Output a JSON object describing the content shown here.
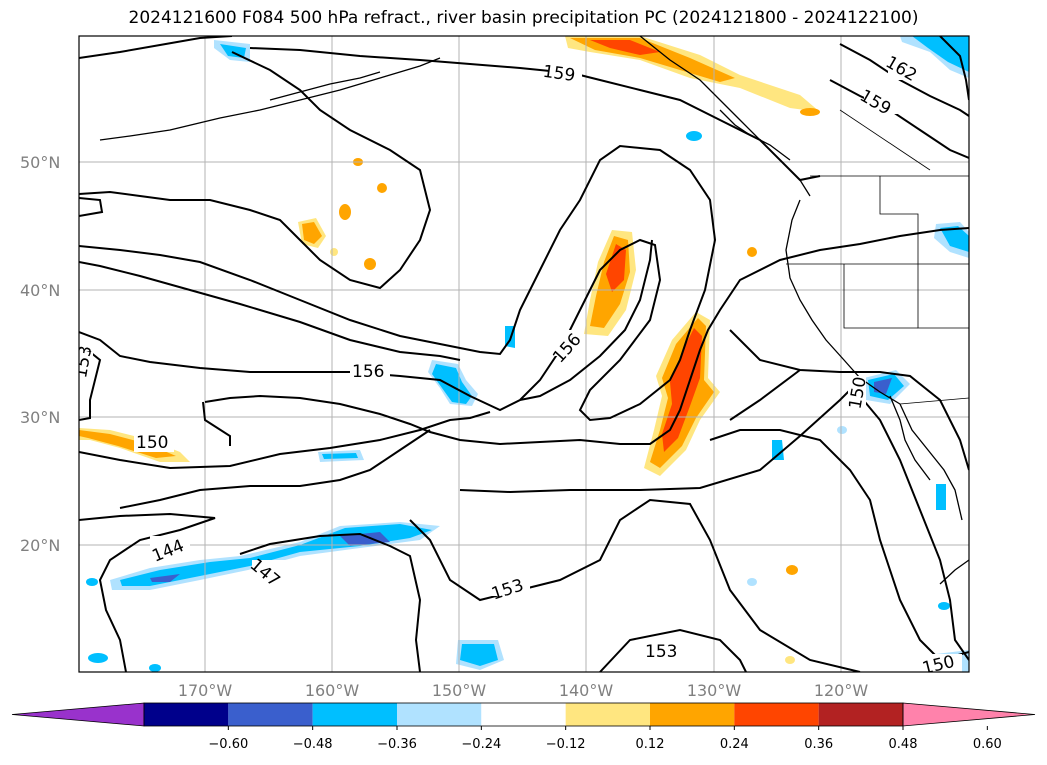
{
  "title": "2024121600 F084 500 hPa refract., river basin precipitation PC (2024121800 - 2024122100)",
  "map": {
    "lat_labels": [
      "50°N",
      "40°N",
      "30°N",
      "20°N"
    ],
    "lon_labels": [
      "170°W",
      "160°W",
      "150°W",
      "140°W",
      "130°W",
      "120°W"
    ],
    "contour_labels": [
      "159",
      "162",
      "159",
      "156",
      "156",
      "153",
      "150",
      "150",
      "144",
      "147",
      "153",
      "153",
      "150"
    ]
  },
  "colorbar": {
    "ticks": [
      "−0.60",
      "−0.48",
      "−0.36",
      "−0.24",
      "−0.12",
      "0.12",
      "0.24",
      "0.36",
      "0.48",
      "0.60"
    ],
    "colors": [
      "#9932cc",
      "#00008b",
      "#3a5fcd",
      "#00bfff",
      "#b0e2ff",
      "#ffffff",
      "#ffe680",
      "#ffa500",
      "#ff4500",
      "#b22222",
      "#ff82ab"
    ]
  }
}
